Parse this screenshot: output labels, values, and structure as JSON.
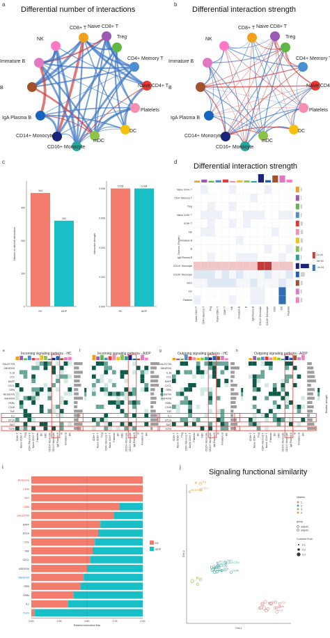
{
  "panel_labels": {
    "a": "a",
    "b": "b",
    "c": "c",
    "d": "d",
    "e": "e",
    "f": "f",
    "g": "g",
    "h": "h",
    "i": "i",
    "j": "j"
  },
  "titles": {
    "a": "Differential number of interactions",
    "b": "Differential interaction strength",
    "d": "Differential interaction strength",
    "j": "Signaling functional similarity",
    "e": "Incoming signaling patterns - HC",
    "f": "Incoming signaling patterns - AIDP",
    "g": "Outgoing signaling patterns - HC",
    "h": "Outgoing signaling patterns - AIDP"
  },
  "cell_types": [
    "CD8+ T",
    "Naive CD8+ T",
    "Treg",
    "CD4+ Memory T",
    "Naive CD4+ T",
    "Platelets",
    "DC",
    "mDC",
    "CD16+ Monocyte",
    "CD14+ Monocyte",
    "IgA Plasma B",
    "B",
    "Immature B",
    "NK"
  ],
  "colors": {
    "up": "#d33c3c",
    "down": "#3a75c4",
    "hc": "#f47c6c",
    "aidp": "#19bfc6",
    "nodes": [
      "#f2a019",
      "#9b59b6",
      "#5fb843",
      "#4a8fd4",
      "#e53935",
      "#f48fb1",
      "#f4c20d",
      "#8bc34a",
      "#26a69a",
      "#1a237e",
      "#1565c0",
      "#a0522d",
      "#e377c2",
      "#ff79c6"
    ]
  },
  "chart_data": [
    {
      "type": "bar",
      "panel": "c-left",
      "categories": [
        "HC",
        "AIDP"
      ],
      "values": [
        344,
        260
      ],
      "ylabel": "Number of inferred interactions",
      "ylim": [
        0,
        380
      ],
      "data_labels": [
        "344",
        "260"
      ]
    },
    {
      "type": "bar",
      "panel": "c-right",
      "categories": [
        "HC",
        "AIDP"
      ],
      "values": [
        0.008,
        0.008
      ],
      "ylabel": "Interaction strength",
      "ylim": [
        0,
        0.0085
      ],
      "data_labels": [
        "0.008",
        "0.008"
      ]
    },
    {
      "type": "bar",
      "panel": "i",
      "orientation": "horizontal",
      "categories": [
        "RESISTIN",
        "CD46",
        "SAG",
        "CD86",
        "GALECTIN",
        "BAFF",
        "BTLA",
        "CCL",
        "TNF",
        "CXCL",
        "VISFATIN",
        "ANNEXIN",
        "GRN",
        "PARs",
        "IL1",
        "TGFb"
      ],
      "series": [
        {
          "name": "HC",
          "values": [
            1,
            1,
            1,
            0.79,
            0.74,
            0.62,
            0.6,
            0.57,
            0.55,
            0.53,
            0.5,
            0.47,
            0.44,
            0.38,
            0.33,
            0.03
          ]
        },
        {
          "name": "AIDP",
          "values": [
            0,
            0,
            0,
            0.21,
            0.26,
            0.38,
            0.4,
            0.43,
            0.45,
            0.47,
            0.5,
            0.53,
            0.56,
            0.62,
            0.67,
            0.97
          ]
        }
      ],
      "xlabel": "Relative information flow",
      "xticks": [
        "0.00",
        "0.25",
        "0.50",
        "0.75",
        "1.00"
      ]
    },
    {
      "type": "scatter",
      "panel": "j",
      "xlabel": "Dim 1",
      "ylabel": "Dim 2",
      "legend_title": "clusters",
      "clusters": [
        "1",
        "2",
        "3",
        "4"
      ],
      "group_title": "group",
      "groups": [
        "aidpHC",
        "aidpHC"
      ],
      "size_title": "Commun.Prob.",
      "sizes": [
        "0.1",
        "0.2",
        "0.3"
      ]
    }
  ],
  "heatmap_rows": [
    "Naive CD4+ T",
    "CD4+ Memory T",
    "Treg",
    "Naive CD8+ T",
    "CD8+ T",
    "NK",
    "Immature B",
    "B",
    "IgA Plasma B",
    "CD14+ Monocyte",
    "CD16+ Monocyte",
    "mDC",
    "DC",
    "Platelets"
  ],
  "heatmap_axis": "Sources (Sender)",
  "heatmap_legend": [
    "1e-04",
    "0e+00",
    "-1e-04"
  ],
  "signaling_rows": [
    "GALECTIN",
    "ANNEXIN",
    "IL16",
    "CCL",
    "BAFF",
    "CXCL",
    "GRN",
    "RESISTIN",
    "VISFATIN",
    "PARs",
    "CD46",
    "TNF",
    "IL1",
    "BTLA",
    "SAG",
    "TGFb"
  ],
  "legend_text": {
    "hc": "HC",
    "aidp": "AIDP",
    "rel_strength": "Relative strength"
  },
  "j_labels": [
    "TNF",
    "RESISTIN",
    "CXCL",
    "GALECTIN",
    "BAFF",
    "BAG",
    "PARs",
    "GRN",
    "IL1",
    "CD46",
    "BTLA",
    "ANNEXIN",
    "TGFb",
    "VISFATIN",
    "SAG",
    "CCL",
    "CD86",
    "IL16"
  ]
}
